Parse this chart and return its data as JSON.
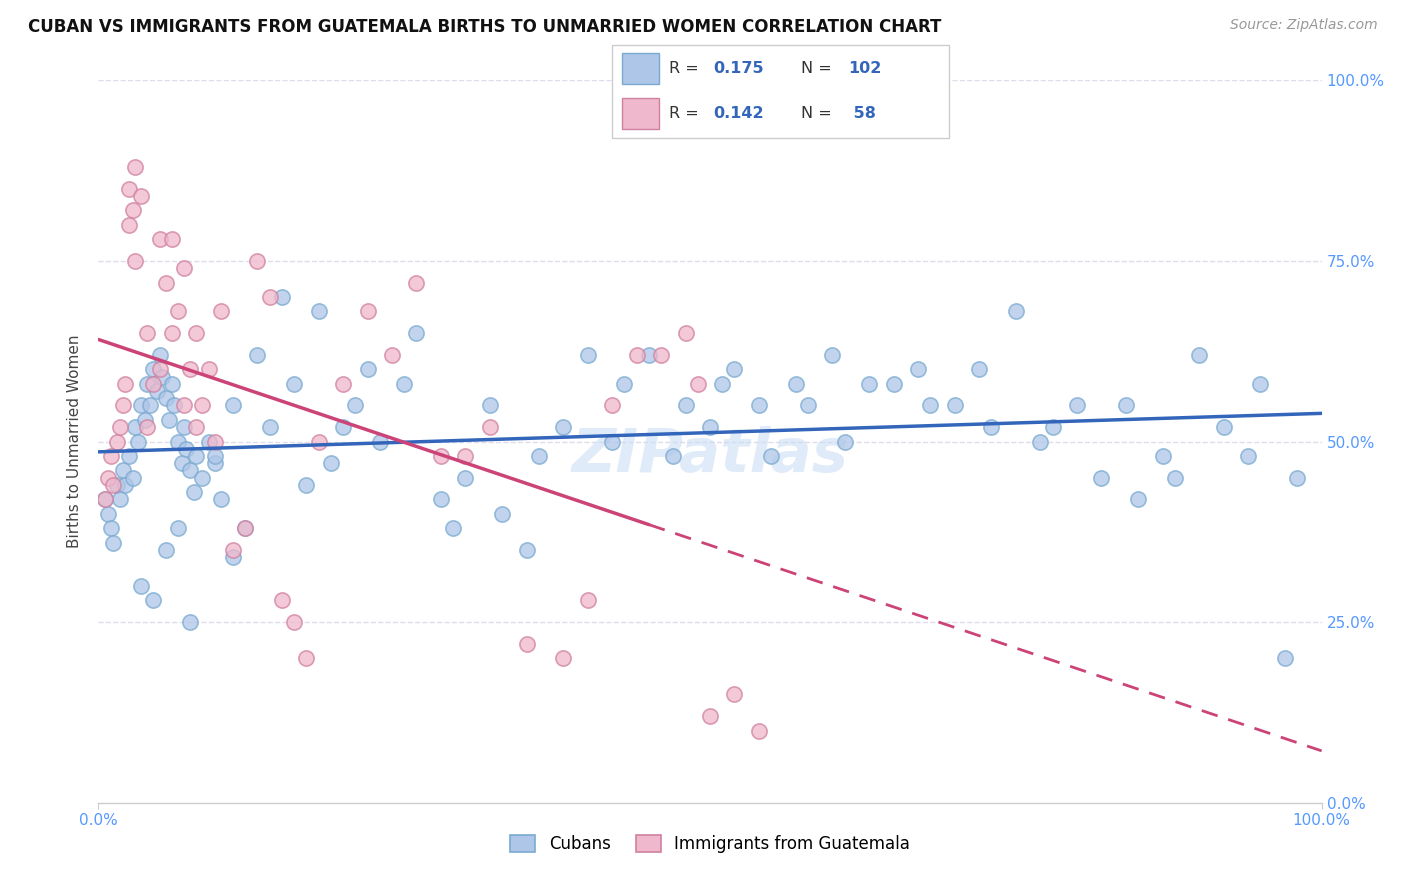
{
  "title": "CUBAN VS IMMIGRANTS FROM GUATEMALA BIRTHS TO UNMARRIED WOMEN CORRELATION CHART",
  "source": "Source: ZipAtlas.com",
  "ylabel": "Births to Unmarried Women",
  "cuban_color": "#aec6e8",
  "cuban_edge_color": "#7aaad0",
  "guatemala_color": "#f0b8cc",
  "guatemala_edge_color": "#d080a0",
  "cuban_line_color": "#3366bb",
  "guatemala_line_color": "#cc4477",
  "legend_text_color": "#3366bb",
  "watermark": "ZIPatlas",
  "tick_color": "#5599ff",
  "grid_color": "#ddddee",
  "cuban_x": [
    0.5,
    0.8,
    1.0,
    1.2,
    1.5,
    1.8,
    2.0,
    2.2,
    2.5,
    2.8,
    3.0,
    3.2,
    3.5,
    3.8,
    4.0,
    4.2,
    4.5,
    4.8,
    5.0,
    5.2,
    5.5,
    5.8,
    6.0,
    6.2,
    6.5,
    6.8,
    7.0,
    7.2,
    7.5,
    7.8,
    8.0,
    8.5,
    9.0,
    9.5,
    10.0,
    11.0,
    12.0,
    13.0,
    14.0,
    15.0,
    16.0,
    17.0,
    18.0,
    19.0,
    20.0,
    21.0,
    22.0,
    23.0,
    25.0,
    26.0,
    28.0,
    29.0,
    30.0,
    32.0,
    33.0,
    35.0,
    36.0,
    38.0,
    40.0,
    42.0,
    43.0,
    45.0,
    47.0,
    48.0,
    50.0,
    51.0,
    52.0,
    54.0,
    55.0,
    57.0,
    58.0,
    60.0,
    61.0,
    63.0,
    65.0,
    67.0,
    68.0,
    70.0,
    72.0,
    73.0,
    75.0,
    77.0,
    78.0,
    80.0,
    82.0,
    84.0,
    85.0,
    87.0,
    88.0,
    90.0,
    92.0,
    94.0,
    95.0,
    97.0,
    98.0,
    5.5,
    6.5,
    3.5,
    4.5,
    7.5,
    9.5,
    11.0
  ],
  "cuban_y": [
    42,
    40,
    38,
    36,
    44,
    42,
    46,
    44,
    48,
    45,
    52,
    50,
    55,
    53,
    58,
    55,
    60,
    57,
    62,
    59,
    56,
    53,
    58,
    55,
    50,
    47,
    52,
    49,
    46,
    43,
    48,
    45,
    50,
    47,
    42,
    55,
    38,
    62,
    52,
    70,
    58,
    44,
    68,
    47,
    52,
    55,
    60,
    50,
    58,
    65,
    42,
    38,
    45,
    55,
    40,
    35,
    48,
    52,
    62,
    50,
    58,
    62,
    48,
    55,
    52,
    58,
    60,
    55,
    48,
    58,
    55,
    62,
    50,
    58,
    58,
    60,
    55,
    55,
    60,
    52,
    68,
    50,
    52,
    55,
    45,
    55,
    42,
    48,
    45,
    62,
    52,
    48,
    58,
    20,
    45,
    35,
    38,
    30,
    28,
    25,
    48,
    34
  ],
  "guatemala_x": [
    0.5,
    0.8,
    1.0,
    1.2,
    1.5,
    1.8,
    2.0,
    2.2,
    2.5,
    2.8,
    3.0,
    3.5,
    4.0,
    4.5,
    5.0,
    5.5,
    6.0,
    6.5,
    7.0,
    7.5,
    8.0,
    8.5,
    9.0,
    9.5,
    10.0,
    11.0,
    12.0,
    13.0,
    14.0,
    15.0,
    16.0,
    17.0,
    18.0,
    20.0,
    22.0,
    24.0,
    26.0,
    28.0,
    30.0,
    32.0,
    35.0,
    38.0,
    40.0,
    42.0,
    44.0,
    46.0,
    48.0,
    49.0,
    50.0,
    52.0,
    54.0,
    2.5,
    3.0,
    4.0,
    5.0,
    6.0,
    7.0,
    8.0
  ],
  "guatemala_y": [
    42,
    45,
    48,
    44,
    50,
    52,
    55,
    58,
    85,
    82,
    88,
    84,
    52,
    58,
    78,
    72,
    78,
    68,
    74,
    60,
    65,
    55,
    60,
    50,
    68,
    35,
    38,
    75,
    70,
    28,
    25,
    20,
    50,
    58,
    68,
    62,
    72,
    48,
    48,
    52,
    22,
    20,
    28,
    55,
    62,
    62,
    65,
    58,
    12,
    15,
    10,
    80,
    75,
    65,
    60,
    65,
    55,
    52
  ]
}
